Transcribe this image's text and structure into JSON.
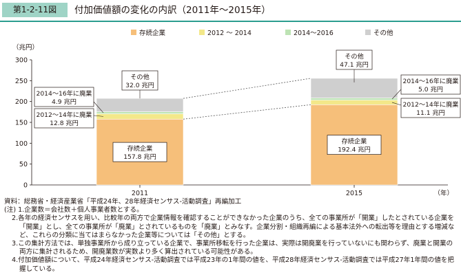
{
  "figure": {
    "label": "第1-2-11図",
    "title": "付加価値額の変化の内訳（2011年～2015年）"
  },
  "colors": {
    "continuing": "#f6bf7a",
    "closed_2012_2014": "#f3e88a",
    "closed_2014_2016": "#bde3b4",
    "other": "#cfcfcf",
    "label_bg": "#ffffff",
    "header_accent": "#9fd4c6",
    "divider": "#2a9d8f"
  },
  "chart_data": {
    "type": "bar",
    "stacked": true,
    "categories": [
      "2011",
      "2015"
    ],
    "unit_label": "（兆円）",
    "xlabel": "（年）",
    "ylim": [
      0,
      300
    ],
    "yticks": [
      "0",
      "50",
      "100",
      "150",
      "200",
      "250",
      "300"
    ],
    "legend_position": "top",
    "grid": false,
    "legend": [
      "存続企業",
      "2012 ～ 2014",
      "2014～2016",
      "その他"
    ],
    "series": [
      {
        "name": "存続企業",
        "values": [
          157.8,
          192.4
        ],
        "color_key": "continuing"
      },
      {
        "name": "2012 ～ 2014",
        "values": [
          12.8,
          11.1
        ],
        "color_key": "closed_2012_2014"
      },
      {
        "name": "2014～2016",
        "values": [
          4.9,
          5.0
        ],
        "color_key": "closed_2014_2016"
      },
      {
        "name": "その他",
        "values": [
          32.0,
          47.1
        ],
        "color_key": "other"
      }
    ],
    "annotations": {
      "2011": {
        "存続企業": [
          "存続企業",
          "157.8 兆円"
        ],
        "2012 ～ 2014": [
          "2012～14年に廃業",
          "12.8 兆円"
        ],
        "2014～2016": [
          "2014～16年に廃業",
          "4.9 兆円"
        ],
        "その他": [
          "その他",
          "32.0 兆円"
        ]
      },
      "2015": {
        "存続企業": [
          "存続企業",
          "192.4 兆円"
        ],
        "2012 ～ 2014": [
          "2012～14年に廃業",
          "11.1 兆円"
        ],
        "2014～2016": [
          "2014～16年に廃業",
          "5.0 兆円"
        ],
        "その他": [
          "その他",
          "47.1 兆円"
        ]
      }
    }
  },
  "notes": {
    "source": "資料：総務省・経済産業省「平成24年、28年経済センサス-活動調査」再編加工",
    "note1": "(注) 1.企業数＝会社数＋個人事業者数とする。",
    "note2": "2.各年の経済センサスを用い、比較年の両方で企業情報を確認することができなかった企業のうち、全ての事業所が「開業」したとされている企業を「開業」とし、全ての事業所が「廃業」とされているものを「廃業」とみなす。企業分割・組織再編による基本法外への転出等を理由とする増減など、これらの分類に当てはまらなかった企業等については「その他」とする。",
    "note3": "3.この集計方法では、単独事業所から成り立っている企業で、事業所移転を行った企業は、実際は開廃業を行っていないにも関わらず、廃業と開業の両方に集計されるため、開廃業数が実数より多く算出されている可能性がある。",
    "note4": "4.付加価値額について、平成24年経済センサス-活動調査では平成23年の1年間の値を、平成28年経済センサス-活動調査では平成27年1年間の値を把握している。"
  }
}
